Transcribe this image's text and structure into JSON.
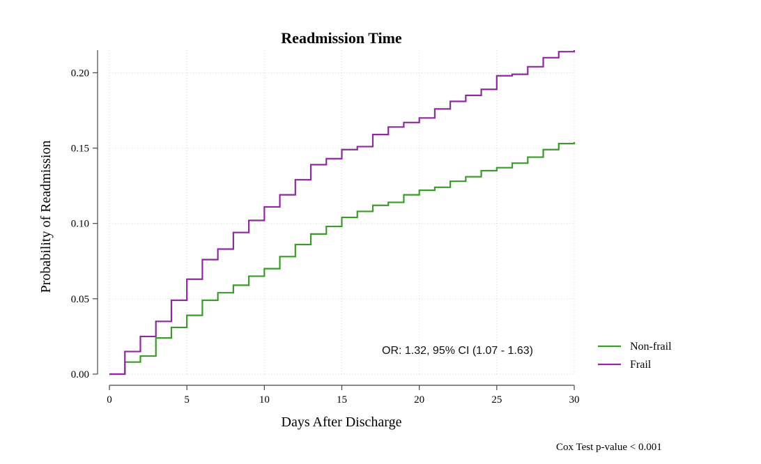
{
  "chart_data": {
    "type": "line",
    "step": true,
    "title": "Readmission Time",
    "xlabel": "Days After Discharge",
    "ylabel": "Probability of Readmission",
    "xlim": [
      0,
      30
    ],
    "ylim": [
      0,
      0.215
    ],
    "x_ticks": [
      0,
      5,
      10,
      15,
      20,
      25,
      30
    ],
    "x_tick_labels": [
      "0",
      "5",
      "10",
      "15",
      "20",
      "25",
      "30"
    ],
    "y_ticks": [
      0,
      0.05,
      0.1,
      0.15,
      0.2
    ],
    "y_tick_labels": [
      "0.00",
      "0.05",
      "0.10",
      "0.15",
      "0.20"
    ],
    "grid": true,
    "legend_position": "bottom-right outside",
    "annotation": "OR: 1.32, 95% CI (1.07 - 1.63)",
    "footnote": "Cox Test p-value  < 0.001",
    "x": [
      0,
      1,
      2,
      3,
      4,
      5,
      6,
      7,
      8,
      9,
      10,
      11,
      12,
      13,
      14,
      15,
      16,
      17,
      18,
      19,
      20,
      21,
      22,
      23,
      24,
      25,
      26,
      27,
      28,
      29,
      30
    ],
    "series": [
      {
        "name": "Non-frail",
        "color": "#3a9a2a",
        "values": [
          0.0,
          0.008,
          0.012,
          0.024,
          0.031,
          0.039,
          0.049,
          0.054,
          0.059,
          0.065,
          0.07,
          0.078,
          0.086,
          0.093,
          0.098,
          0.104,
          0.108,
          0.112,
          0.114,
          0.119,
          0.122,
          0.124,
          0.128,
          0.131,
          0.135,
          0.137,
          0.14,
          0.144,
          0.149,
          0.153,
          0.154
        ]
      },
      {
        "name": "Frail",
        "color": "#8e2a9e",
        "values": [
          0.0,
          0.015,
          0.025,
          0.035,
          0.049,
          0.063,
          0.076,
          0.083,
          0.094,
          0.102,
          0.111,
          0.119,
          0.129,
          0.139,
          0.143,
          0.149,
          0.151,
          0.159,
          0.164,
          0.167,
          0.17,
          0.176,
          0.181,
          0.185,
          0.189,
          0.198,
          0.199,
          0.204,
          0.21,
          0.214,
          0.215
        ]
      }
    ]
  }
}
